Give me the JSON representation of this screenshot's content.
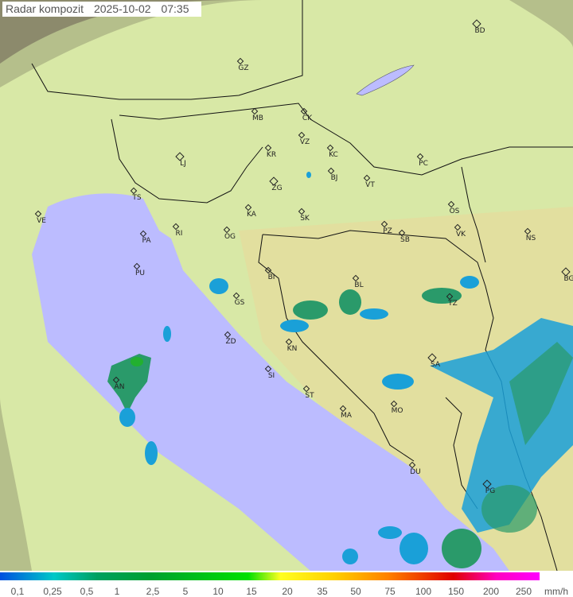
{
  "title": {
    "label": "Radar kompozit",
    "date": "2025-10-02",
    "time": "07:35"
  },
  "colors": {
    "sea": "#bcbcff",
    "coverage_land": "#d8eca8",
    "outside_coverage": "#8a8a70",
    "rain_light": "#1aa0d8",
    "rain_medium": "#2a9a6a",
    "rain_heavy": "#22b030"
  },
  "cities": [
    "GZ",
    "BD",
    "MB",
    "CK",
    "VZ",
    "KR",
    "KC",
    "PC",
    "LJ",
    "BJ",
    "VT",
    "ZG",
    "TS",
    "VE",
    "KA",
    "SK",
    "OS",
    "RI",
    "PA",
    "OG",
    "PZ",
    "SB",
    "VK",
    "NS",
    "PU",
    "BG",
    "BI",
    "BL",
    "GS",
    "TZ",
    "ZD",
    "KN",
    "SA",
    "AN",
    "SI",
    "ST",
    "MO",
    "MA",
    "DU",
    "PG"
  ],
  "legend": {
    "ticks": [
      "0,1",
      "0,25",
      "0,5",
      "1",
      "2,5",
      "5",
      "10",
      "15",
      "20",
      "35",
      "50",
      "75",
      "100",
      "150",
      "200",
      "250"
    ],
    "unit": "mm/h"
  }
}
